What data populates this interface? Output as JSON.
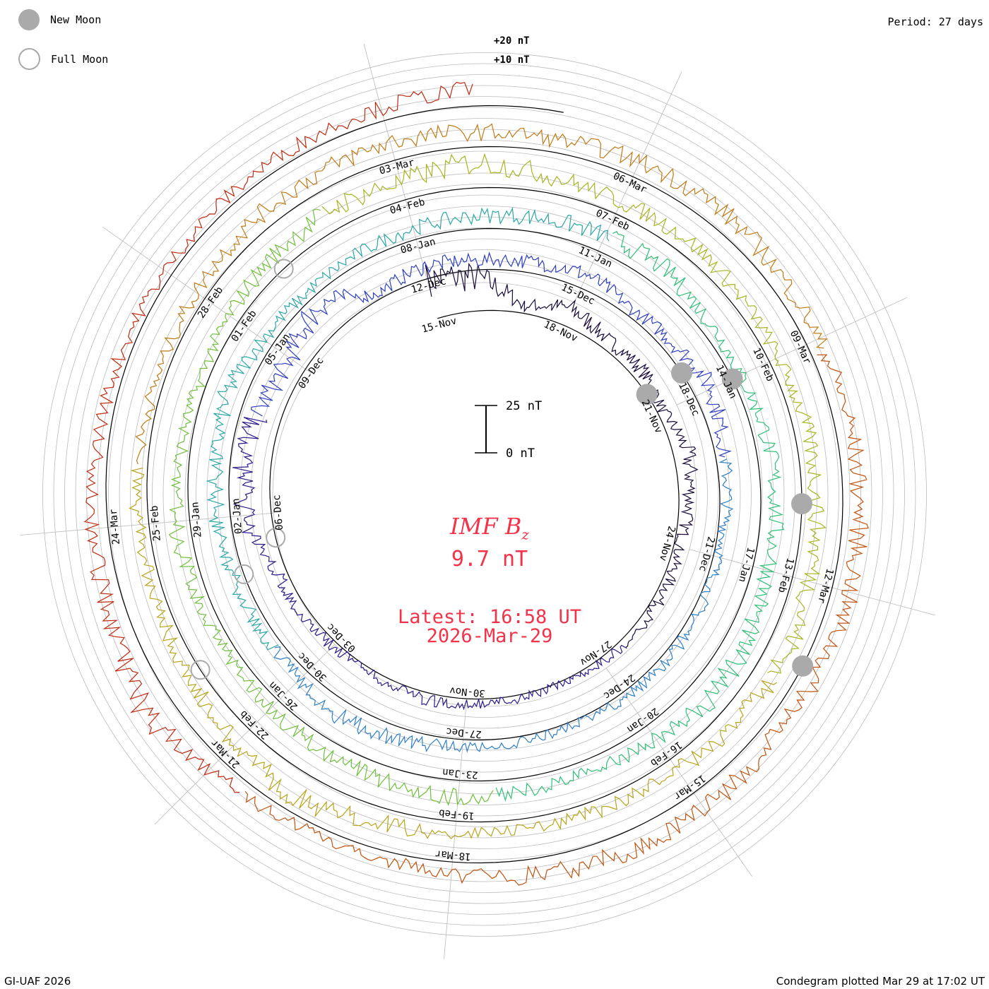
{
  "legend": {
    "new_moon_label": "New Moon",
    "full_moon_label": "Full Moon"
  },
  "period_label": "Period: 27 days",
  "footer_left": "GI-UAF 2026",
  "footer_right": "Condegram plotted Mar 29 at 17:02 UT",
  "center": {
    "quantity_label": "IMF B",
    "quantity_subscript": "z",
    "value": "9.7 nT",
    "latest": "Latest: 16:58 UT",
    "date": "2026-Mar-29"
  },
  "colors": {
    "accent": "#f2334a",
    "grid": "#bbbbbb",
    "moon": "#aaaaaa"
  },
  "chart_data": {
    "type": "line",
    "subtype": "condegram spiral",
    "period_days": 27,
    "scale_bar": {
      "top_label": "25 nT",
      "bottom_label": "0 nT",
      "span_nT": 25
    },
    "ring_labels": [
      "+20 nT",
      "+10 nT"
    ],
    "baseline_nT": 0,
    "date_labels": [
      {
        "text": "15-Nov",
        "day": 0
      },
      {
        "text": "18-Nov",
        "day": 3
      },
      {
        "text": "21-Nov",
        "day": 6
      },
      {
        "text": "24-Nov",
        "day": 9
      },
      {
        "text": "27-Nov",
        "day": 12
      },
      {
        "text": "30-Nov",
        "day": 15
      },
      {
        "text": "03-Dec",
        "day": 18
      },
      {
        "text": "06-Dec",
        "day": 21
      },
      {
        "text": "09-Dec",
        "day": 24
      },
      {
        "text": "12-Dec",
        "day": 27
      },
      {
        "text": "15-Dec",
        "day": 30
      },
      {
        "text": "18-Dec",
        "day": 33
      },
      {
        "text": "21-Dec",
        "day": 36
      },
      {
        "text": "24-Dec",
        "day": 39
      },
      {
        "text": "27-Dec",
        "day": 42
      },
      {
        "text": "30-Dec",
        "day": 45
      },
      {
        "text": "02-Jan",
        "day": 48
      },
      {
        "text": "05-Jan",
        "day": 51
      },
      {
        "text": "08-Jan",
        "day": 54
      },
      {
        "text": "11-Jan",
        "day": 57
      },
      {
        "text": "14-Jan",
        "day": 60
      },
      {
        "text": "17-Jan",
        "day": 63
      },
      {
        "text": "20-Jan",
        "day": 66
      },
      {
        "text": "23-Jan",
        "day": 69
      },
      {
        "text": "26-Jan",
        "day": 72
      },
      {
        "text": "29-Jan",
        "day": 75
      },
      {
        "text": "01-Feb",
        "day": 78
      },
      {
        "text": "04-Feb",
        "day": 81
      },
      {
        "text": "07-Feb",
        "day": 84
      },
      {
        "text": "10-Feb",
        "day": 87
      },
      {
        "text": "13-Feb",
        "day": 90
      },
      {
        "text": "16-Feb",
        "day": 93
      },
      {
        "text": "19-Feb",
        "day": 96
      },
      {
        "text": "22-Feb",
        "day": 99
      },
      {
        "text": "25-Feb",
        "day": 102
      },
      {
        "text": "28-Feb",
        "day": 105
      },
      {
        "text": "03-Mar",
        "day": 108
      },
      {
        "text": "06-Mar",
        "day": 111
      },
      {
        "text": "09-Mar",
        "day": 114
      },
      {
        "text": "12-Mar",
        "day": 117
      },
      {
        "text": "15-Mar",
        "day": 120
      },
      {
        "text": "18-Mar",
        "day": 123
      },
      {
        "text": "21-Mar",
        "day": 126
      },
      {
        "text": "24-Mar",
        "day": 129
      }
    ],
    "new_moon_days": [
      5.5,
      32.5,
      60,
      89,
      118
    ],
    "full_moon_days": [
      20.5,
      47,
      79,
      100
    ],
    "series_daily_nT": [
      22,
      18,
      4,
      10,
      5,
      6,
      3,
      8,
      6,
      3,
      4,
      3,
      2,
      1,
      2,
      3,
      4,
      2,
      3,
      4,
      6,
      14,
      16,
      12,
      10,
      18,
      3,
      7,
      5,
      6,
      8,
      4,
      6,
      10,
      5,
      4,
      3,
      3,
      4,
      3,
      2,
      3,
      4,
      6,
      9,
      6,
      5,
      6,
      8,
      7,
      10,
      6,
      4,
      5,
      6,
      7,
      8,
      9,
      10,
      6,
      5,
      7,
      8,
      9,
      10,
      14,
      8,
      6,
      7,
      9,
      8,
      7,
      6,
      5,
      6,
      8,
      5,
      4,
      6,
      9,
      11,
      10,
      14,
      9,
      7,
      8,
      6,
      5,
      7,
      8,
      10,
      12,
      9,
      7,
      6,
      5,
      6,
      8,
      14,
      10,
      7,
      5,
      6,
      5,
      4,
      6,
      8,
      9,
      10,
      8,
      7,
      9,
      10,
      8,
      7,
      8,
      9,
      10,
      9,
      8,
      11,
      10,
      9,
      7,
      4,
      5,
      8,
      16,
      10,
      8,
      6,
      5,
      4,
      5,
      6,
      7,
      9
    ]
  }
}
